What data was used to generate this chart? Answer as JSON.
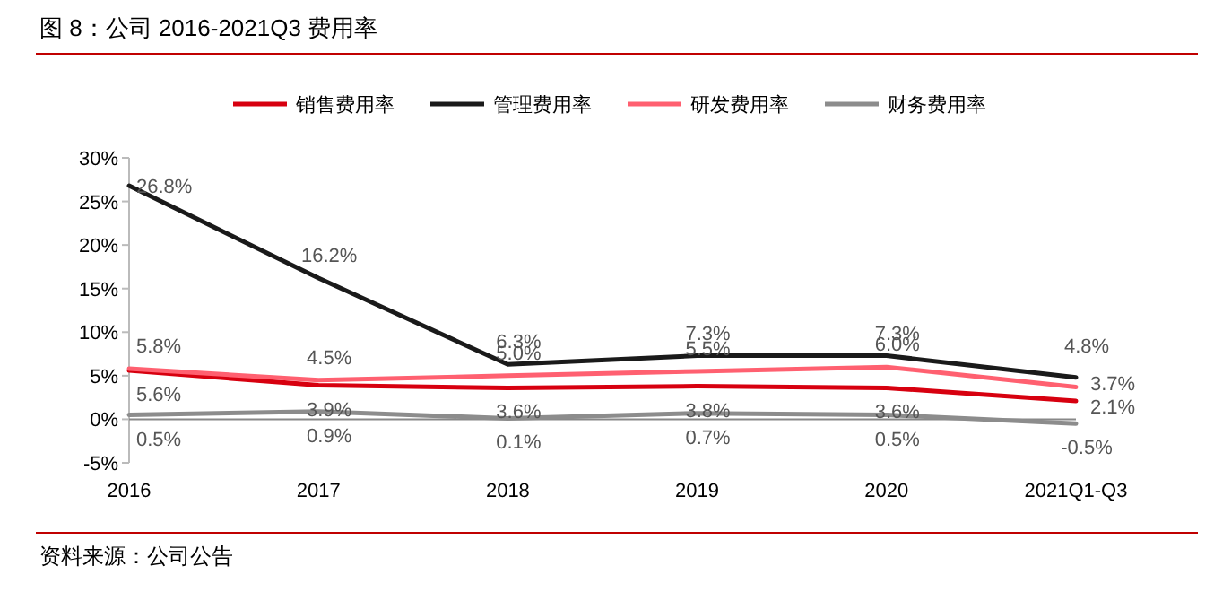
{
  "chart_data": {
    "type": "line",
    "title": "图 8：公司 2016-2021Q3 费用率",
    "categories": [
      "2016",
      "2017",
      "2018",
      "2019",
      "2020",
      "2021Q1-Q3"
    ],
    "series": [
      {
        "name": "销售费用率",
        "color": "#d7000f",
        "values": [
          5.6,
          3.9,
          3.6,
          3.8,
          3.6,
          2.1
        ],
        "value_labels": [
          "5.6%",
          "3.9%",
          "3.6%",
          "3.8%",
          "3.6%",
          "2.1%"
        ]
      },
      {
        "name": "管理费用率",
        "color": "#1a1a1a",
        "values": [
          26.8,
          16.2,
          6.3,
          7.3,
          7.3,
          4.8
        ],
        "value_labels": [
          "26.8%",
          "16.2%",
          "6.3%",
          "7.3%",
          "7.3%",
          "4.8%"
        ]
      },
      {
        "name": "研发费用率",
        "color": "#ff6070",
        "values": [
          5.8,
          4.5,
          5.0,
          5.5,
          6.0,
          3.7
        ],
        "value_labels": [
          "5.8%",
          "4.5%",
          "5.0%",
          "5.5%",
          "6.0%",
          "3.7%"
        ]
      },
      {
        "name": "财务费用率",
        "color": "#8c8c8c",
        "values": [
          0.5,
          0.9,
          0.1,
          0.7,
          0.5,
          -0.5
        ],
        "value_labels": [
          "0.5%",
          "0.9%",
          "0.1%",
          "0.7%",
          "0.5%",
          "-0.5%"
        ]
      }
    ],
    "ylim": [
      -5,
      30
    ],
    "yticks": [
      {
        "value": -5,
        "label": "-5%"
      },
      {
        "value": 0,
        "label": "0%"
      },
      {
        "value": 5,
        "label": "5%"
      },
      {
        "value": 10,
        "label": "10%"
      },
      {
        "value": 15,
        "label": "15%"
      },
      {
        "value": 20,
        "label": "20%"
      },
      {
        "value": 25,
        "label": "25%"
      },
      {
        "value": 30,
        "label": "30%"
      }
    ],
    "legend": "top",
    "marker": "none",
    "line_style": "solid",
    "annotations": [
      "资料来源：公司公告"
    ]
  }
}
